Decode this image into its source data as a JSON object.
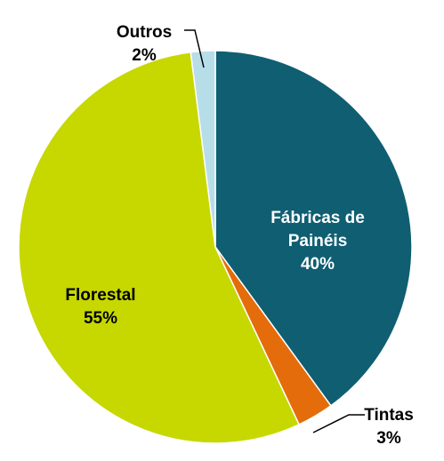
{
  "chart_data": {
    "type": "pie",
    "categories": [
      "Fábricas de Painéis",
      "Tintas",
      "Florestal",
      "Outros"
    ],
    "values": [
      40,
      3,
      55,
      2
    ],
    "value_labels": [
      "40%",
      "3%",
      "55%",
      "2%"
    ],
    "colors": [
      "#0f5e72",
      "#e46c0a",
      "#c6d800",
      "#b7dde8"
    ]
  }
}
